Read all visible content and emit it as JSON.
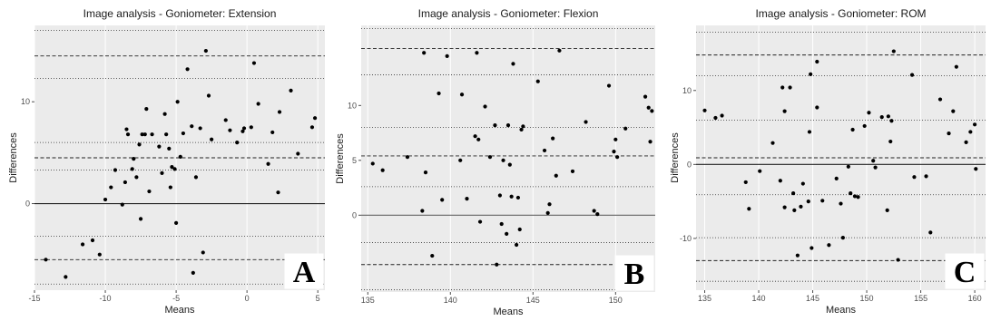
{
  "chart_data": [
    {
      "type": "scatter",
      "title": "Image analysis - Goniometer: Extension",
      "xlabel": "Means",
      "ylabel": "Differences",
      "panel_letter": "A",
      "xlim": [
        -15,
        5.5
      ],
      "ylim": [
        -8.5,
        17.5
      ],
      "xticks": [
        -15,
        -10,
        -5,
        0,
        5
      ],
      "yticks": [
        0,
        10
      ],
      "grid": true,
      "background": "#ebebeb",
      "mean_line": 0,
      "dashed_lines": [
        14.5,
        4.5,
        -5.5
      ],
      "dotted_lines": [
        17,
        12.3,
        6.0,
        3.3,
        -3.2,
        -7.9
      ],
      "points": [
        {
          "x": -14.2,
          "y": -5.5
        },
        {
          "x": -12.8,
          "y": -7.2
        },
        {
          "x": -11.6,
          "y": -4.0
        },
        {
          "x": -10.9,
          "y": -3.6
        },
        {
          "x": -10.4,
          "y": -5.0
        },
        {
          "x": -10.0,
          "y": 0.4
        },
        {
          "x": -9.6,
          "y": 1.6
        },
        {
          "x": -9.3,
          "y": 3.3
        },
        {
          "x": -8.8,
          "y": -0.1
        },
        {
          "x": -8.6,
          "y": 2.1
        },
        {
          "x": -8.5,
          "y": 7.3
        },
        {
          "x": -8.4,
          "y": 6.8
        },
        {
          "x": -8.1,
          "y": 3.4
        },
        {
          "x": -8.0,
          "y": 4.4
        },
        {
          "x": -7.8,
          "y": 2.6
        },
        {
          "x": -7.6,
          "y": 5.8
        },
        {
          "x": -7.5,
          "y": -1.5
        },
        {
          "x": -7.4,
          "y": 6.8
        },
        {
          "x": -7.2,
          "y": 6.8
        },
        {
          "x": -7.1,
          "y": 9.3
        },
        {
          "x": -6.9,
          "y": 1.2
        },
        {
          "x": -6.7,
          "y": 6.8
        },
        {
          "x": -6.2,
          "y": 5.6
        },
        {
          "x": -6.0,
          "y": 3.0
        },
        {
          "x": -5.8,
          "y": 8.8
        },
        {
          "x": -5.7,
          "y": 6.8
        },
        {
          "x": -5.5,
          "y": 5.4
        },
        {
          "x": -5.4,
          "y": 1.6
        },
        {
          "x": -5.3,
          "y": 3.6
        },
        {
          "x": -5.1,
          "y": 3.4
        },
        {
          "x": -5.0,
          "y": -1.9
        },
        {
          "x": -4.9,
          "y": 10.0
        },
        {
          "x": -4.7,
          "y": 4.6
        },
        {
          "x": -4.5,
          "y": 6.9
        },
        {
          "x": -4.2,
          "y": 13.2
        },
        {
          "x": -3.9,
          "y": 7.6
        },
        {
          "x": -3.8,
          "y": -6.8
        },
        {
          "x": -3.6,
          "y": 2.6
        },
        {
          "x": -3.3,
          "y": 7.4
        },
        {
          "x": -3.1,
          "y": -4.8
        },
        {
          "x": -2.9,
          "y": 15.0
        },
        {
          "x": -2.7,
          "y": 10.6
        },
        {
          "x": -2.5,
          "y": 6.3
        },
        {
          "x": -1.5,
          "y": 8.2
        },
        {
          "x": -1.2,
          "y": 7.2
        },
        {
          "x": -0.7,
          "y": 6.0
        },
        {
          "x": -0.3,
          "y": 7.1
        },
        {
          "x": -0.2,
          "y": 7.4
        },
        {
          "x": 0.3,
          "y": 7.5
        },
        {
          "x": 0.5,
          "y": 13.8
        },
        {
          "x": 0.8,
          "y": 9.8
        },
        {
          "x": 1.5,
          "y": 3.9
        },
        {
          "x": 1.8,
          "y": 7.0
        },
        {
          "x": 2.2,
          "y": 1.1
        },
        {
          "x": 2.3,
          "y": 9.0
        },
        {
          "x": 3.1,
          "y": 11.1
        },
        {
          "x": 3.6,
          "y": 4.9
        },
        {
          "x": 4.6,
          "y": 7.5
        },
        {
          "x": 4.8,
          "y": 8.4
        }
      ]
    },
    {
      "type": "scatter",
      "title": "Image analysis - Goniometer: Flexion",
      "xlabel": "Means",
      "ylabel": "Differences",
      "panel_letter": "B",
      "xlim": [
        134.6,
        152.4
      ],
      "ylim": [
        -7.0,
        17.3
      ],
      "xticks": [
        135,
        140,
        145,
        150
      ],
      "yticks": [
        0,
        5,
        10
      ],
      "grid": true,
      "background": "#ebebeb",
      "mean_line": 0,
      "dashed_lines": [
        15.2,
        5.4,
        -4.5
      ],
      "dotted_lines": [
        17.0,
        12.8,
        8.0,
        2.6,
        -2.5,
        -6.8
      ],
      "points": [
        {
          "x": 135.3,
          "y": 4.7
        },
        {
          "x": 135.9,
          "y": 4.1
        },
        {
          "x": 137.4,
          "y": 5.3
        },
        {
          "x": 138.3,
          "y": 0.4
        },
        {
          "x": 138.4,
          "y": 14.8
        },
        {
          "x": 138.5,
          "y": 3.9
        },
        {
          "x": 138.9,
          "y": -3.7
        },
        {
          "x": 139.3,
          "y": 11.1
        },
        {
          "x": 139.5,
          "y": 1.4
        },
        {
          "x": 139.8,
          "y": 14.5
        },
        {
          "x": 140.6,
          "y": 5.0
        },
        {
          "x": 140.7,
          "y": 11.0
        },
        {
          "x": 141.0,
          "y": 1.5
        },
        {
          "x": 141.5,
          "y": 7.2
        },
        {
          "x": 141.6,
          "y": 14.8
        },
        {
          "x": 141.7,
          "y": 6.9
        },
        {
          "x": 141.8,
          "y": -0.6
        },
        {
          "x": 142.1,
          "y": 9.9
        },
        {
          "x": 142.4,
          "y": 5.3
        },
        {
          "x": 142.7,
          "y": 8.2
        },
        {
          "x": 142.8,
          "y": -4.5
        },
        {
          "x": 143.0,
          "y": 1.8
        },
        {
          "x": 143.1,
          "y": -0.8
        },
        {
          "x": 143.2,
          "y": 5.0
        },
        {
          "x": 143.4,
          "y": -1.7
        },
        {
          "x": 143.5,
          "y": 8.2
        },
        {
          "x": 143.6,
          "y": 4.6
        },
        {
          "x": 143.7,
          "y": 1.7
        },
        {
          "x": 143.8,
          "y": 13.8
        },
        {
          "x": 144.0,
          "y": -2.7
        },
        {
          "x": 144.1,
          "y": 1.6
        },
        {
          "x": 144.2,
          "y": -1.3
        },
        {
          "x": 144.3,
          "y": 7.8
        },
        {
          "x": 144.4,
          "y": 8.1
        },
        {
          "x": 145.3,
          "y": 12.2
        },
        {
          "x": 145.7,
          "y": 5.9
        },
        {
          "x": 145.9,
          "y": 0.2
        },
        {
          "x": 146.0,
          "y": 1.0
        },
        {
          "x": 146.2,
          "y": 7.0
        },
        {
          "x": 146.4,
          "y": 3.6
        },
        {
          "x": 146.6,
          "y": 15.0
        },
        {
          "x": 147.4,
          "y": 4.0
        },
        {
          "x": 148.2,
          "y": 8.5
        },
        {
          "x": 148.7,
          "y": 0.4
        },
        {
          "x": 148.9,
          "y": 0.1
        },
        {
          "x": 149.6,
          "y": 11.8
        },
        {
          "x": 149.9,
          "y": 5.8
        },
        {
          "x": 150.0,
          "y": 6.9
        },
        {
          "x": 150.1,
          "y": 5.3
        },
        {
          "x": 150.6,
          "y": 7.9
        },
        {
          "x": 151.8,
          "y": 10.8
        },
        {
          "x": 152.0,
          "y": 9.8
        },
        {
          "x": 152.1,
          "y": 6.7
        },
        {
          "x": 152.2,
          "y": 9.5
        }
      ]
    },
    {
      "type": "scatter",
      "title": "Image analysis - Goniometer:   ROM",
      "xlabel": "Means",
      "ylabel": "Differences",
      "panel_letter": "C",
      "xlim": [
        134.2,
        161.0
      ],
      "ylim": [
        -17.0,
        18.8
      ],
      "xticks": [
        135,
        140,
        145,
        150,
        155,
        160
      ],
      "yticks": [
        -10,
        0,
        10
      ],
      "grid": true,
      "background": "#ebebeb",
      "mean_line": 0,
      "dashed_lines": [
        14.8,
        0.9,
        -13.0
      ],
      "dotted_lines": [
        17.9,
        12.0,
        6.0,
        -4.1,
        -9.9,
        -15.8
      ],
      "points": [
        {
          "x": 135.0,
          "y": 7.3
        },
        {
          "x": 136.0,
          "y": 6.3
        },
        {
          "x": 136.6,
          "y": 6.6
        },
        {
          "x": 138.8,
          "y": -2.4
        },
        {
          "x": 139.1,
          "y": -6.0
        },
        {
          "x": 140.1,
          "y": -0.9
        },
        {
          "x": 141.3,
          "y": 2.9
        },
        {
          "x": 142.0,
          "y": -2.2
        },
        {
          "x": 142.2,
          "y": 10.4
        },
        {
          "x": 142.4,
          "y": -5.8
        },
        {
          "x": 142.4,
          "y": 7.2
        },
        {
          "x": 142.9,
          "y": 10.4
        },
        {
          "x": 143.2,
          "y": -3.9
        },
        {
          "x": 143.3,
          "y": -6.2
        },
        {
          "x": 143.6,
          "y": -12.3
        },
        {
          "x": 143.9,
          "y": -5.7
        },
        {
          "x": 144.1,
          "y": -2.6
        },
        {
          "x": 144.6,
          "y": -5.0
        },
        {
          "x": 144.7,
          "y": 4.4
        },
        {
          "x": 144.8,
          "y": 12.2
        },
        {
          "x": 144.9,
          "y": -11.3
        },
        {
          "x": 145.4,
          "y": 7.7
        },
        {
          "x": 145.4,
          "y": 13.9
        },
        {
          "x": 145.9,
          "y": -4.9
        },
        {
          "x": 146.5,
          "y": -10.9
        },
        {
          "x": 147.2,
          "y": -1.9
        },
        {
          "x": 147.6,
          "y": -5.3
        },
        {
          "x": 147.8,
          "y": -9.9
        },
        {
          "x": 148.3,
          "y": -0.3
        },
        {
          "x": 148.5,
          "y": -3.9
        },
        {
          "x": 148.7,
          "y": 4.7
        },
        {
          "x": 148.9,
          "y": -4.3
        },
        {
          "x": 149.2,
          "y": -4.4
        },
        {
          "x": 149.8,
          "y": 5.2
        },
        {
          "x": 150.2,
          "y": 7.0
        },
        {
          "x": 150.6,
          "y": 0.5
        },
        {
          "x": 150.8,
          "y": -0.4
        },
        {
          "x": 151.4,
          "y": 6.4
        },
        {
          "x": 151.9,
          "y": -6.2
        },
        {
          "x": 152.0,
          "y": 6.5
        },
        {
          "x": 152.2,
          "y": 3.1
        },
        {
          "x": 152.3,
          "y": 5.9
        },
        {
          "x": 152.5,
          "y": 15.3
        },
        {
          "x": 152.9,
          "y": -12.9
        },
        {
          "x": 154.2,
          "y": 12.1
        },
        {
          "x": 154.4,
          "y": -1.7
        },
        {
          "x": 155.5,
          "y": -1.6
        },
        {
          "x": 155.9,
          "y": -9.2
        },
        {
          "x": 156.8,
          "y": 8.8
        },
        {
          "x": 157.6,
          "y": 4.2
        },
        {
          "x": 158.0,
          "y": 7.2
        },
        {
          "x": 158.3,
          "y": 13.2
        },
        {
          "x": 159.2,
          "y": 3.0
        },
        {
          "x": 159.6,
          "y": 4.4
        },
        {
          "x": 160.0,
          "y": 5.4
        },
        {
          "x": 160.1,
          "y": -0.6
        }
      ]
    }
  ]
}
